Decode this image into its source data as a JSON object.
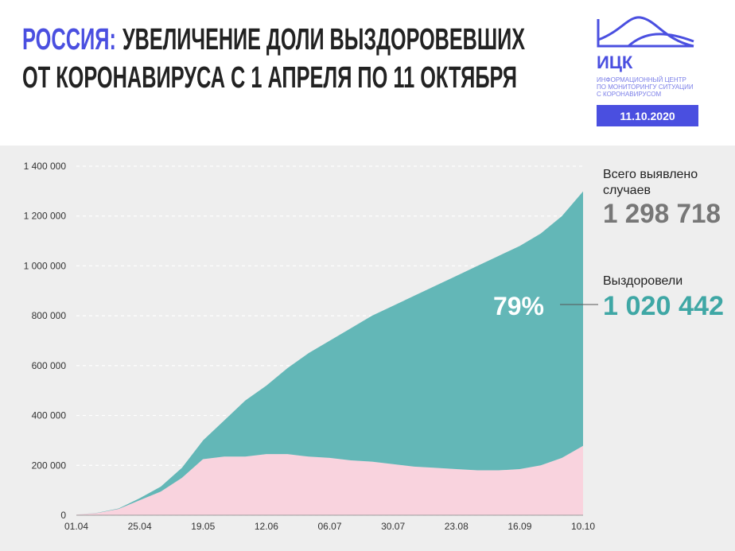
{
  "header": {
    "title_highlight": "РОССИЯ:",
    "title_lines": [
      "УВЕЛИЧЕНИЕ ДОЛИ ВЫЗДОРОВЕВШИХ",
      "ОТ КОРОНАВИРУСА С 1 АПРЕЛЯ ПО 11 ОКТЯБРЯ"
    ],
    "logo": "ИЦК",
    "org_lines": [
      "ИНФОРМАЦИОННЫЙ ЦЕНТР",
      "ПО МОНИТОРИНГУ СИТУАЦИИ",
      "С КОРОНАВИРУСОМ"
    ],
    "date": "11.10.2020"
  },
  "chart_data": {
    "type": "stacked_area",
    "categories": [
      "01.04",
      null,
      null,
      "25.04",
      null,
      null,
      "19.05",
      null,
      null,
      "12.06",
      null,
      null,
      "06.07",
      null,
      null,
      "30.07",
      null,
      null,
      "23.08",
      null,
      null,
      "16.09",
      null,
      null,
      "10.10"
    ],
    "series": [
      {
        "color": "#f9d3de",
        "values": [
          2300,
          9000,
          25000,
          60000,
          95000,
          150000,
          225000,
          235000,
          235000,
          245000,
          245000,
          235000,
          230000,
          220000,
          215000,
          205000,
          195000,
          190000,
          185000,
          180000,
          180000,
          185000,
          200000,
          230000,
          278276
        ]
      },
      {
        "name": "Выздоровели",
        "color": "#63b7b7",
        "values": [
          200,
          1000,
          2000,
          8000,
          20000,
          40000,
          75000,
          145000,
          225000,
          275000,
          345000,
          415000,
          470000,
          530000,
          585000,
          635000,
          685000,
          730000,
          775000,
          820000,
          860000,
          895000,
          930000,
          970000,
          1020442
        ]
      }
    ],
    "ylim": [
      0,
      1400000
    ],
    "yticks": [
      0,
      {
        "value": 200000,
        "label": "200 000"
      },
      {
        "value": 400000,
        "label": "400 000"
      },
      {
        "value": 600000,
        "label": "600 000"
      },
      {
        "value": 800000,
        "label": "800 000"
      },
      {
        "value": 1000000,
        "label": "1 000 000"
      },
      {
        "value": 1200000,
        "label": "1 200 000"
      },
      {
        "value": 1400000,
        "label": "1 400 000"
      }
    ],
    "grid": true,
    "annotations": {
      "total_label_lines": [
        "Всего выявлено",
        "случаев"
      ],
      "total_value": "1 298 718",
      "recovered_label": "Выздоровели",
      "recovered_value": "1 020 442",
      "share": "79%"
    }
  }
}
